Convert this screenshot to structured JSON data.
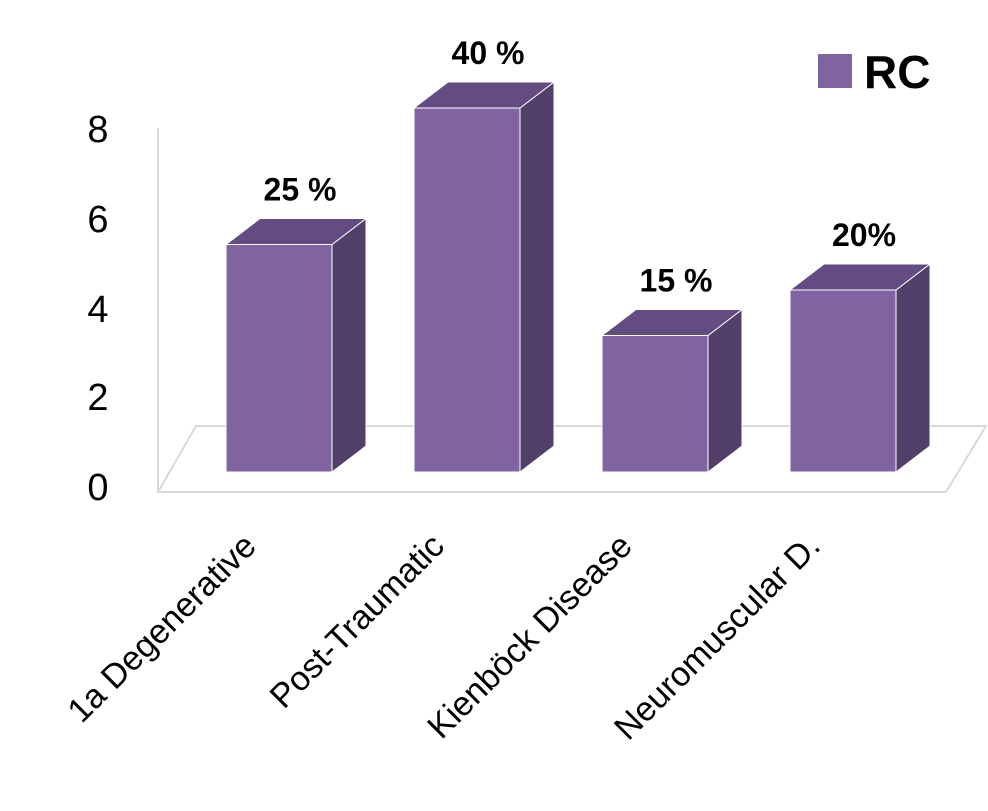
{
  "chart_data": {
    "type": "bar",
    "style": "3d-column",
    "categories": [
      "1a Degenerative",
      "Post-Traumatic",
      "Kienböck Disease",
      "Neuromuscular D."
    ],
    "series": [
      {
        "name": "RC",
        "values": [
          5,
          8,
          3,
          4
        ],
        "color": "#8064a2"
      }
    ],
    "data_labels": [
      "25 %",
      "40 %",
      "15 %",
      "20%"
    ],
    "y_ticks": [
      "0",
      "2",
      "4",
      "6",
      "8"
    ],
    "ylim": [
      0,
      8
    ],
    "grid": false,
    "legend": "top-right",
    "colors": {
      "bar_front": "#8064a2",
      "bar_side": "#523f6a",
      "bar_top": "#634c82",
      "floor": "#d9d9d9"
    }
  }
}
